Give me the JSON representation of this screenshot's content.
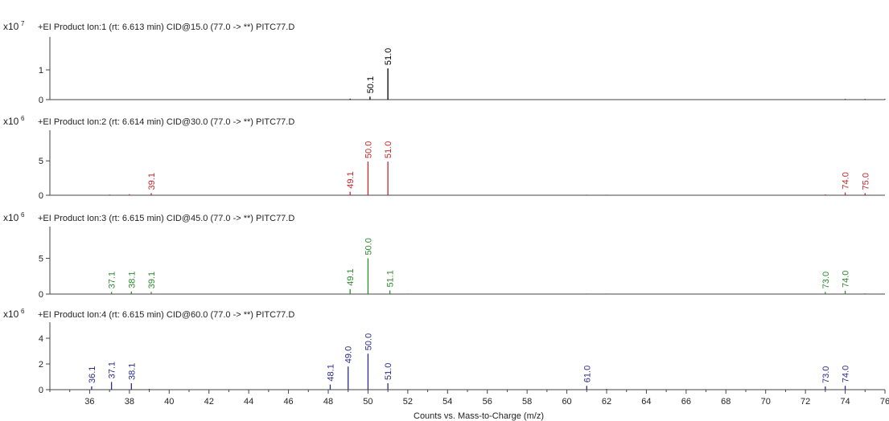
{
  "chart_data": {
    "type": "bar",
    "xlabel": "Counts vs. Mass-to-Charge (m/z)",
    "xlim": [
      34,
      76
    ],
    "x_ticks": [
      36,
      38,
      40,
      42,
      44,
      46,
      48,
      50,
      52,
      54,
      56,
      58,
      60,
      62,
      64,
      66,
      68,
      70,
      72,
      74,
      76
    ],
    "panels": [
      {
        "title": "+EI Product Ion:1 (rt: 6.613 min) CID@15.0 (77.0 -> **) PITC77.D",
        "exponent_base": "x10",
        "exponent": "7",
        "color": "#000000",
        "ylim": [
          0,
          2.0
        ],
        "y_ticks": [
          "0",
          "1"
        ],
        "y_tick_values": [
          0,
          1
        ],
        "peaks": [
          {
            "x": 50.1,
            "y": 0.1,
            "label": "50.1"
          },
          {
            "x": 51.0,
            "y": 1.05,
            "label": "51.0"
          },
          {
            "x": 49.1,
            "y": 0.03,
            "label": ""
          },
          {
            "x": 74.0,
            "y": 0.02,
            "label": ""
          },
          {
            "x": 75.0,
            "y": 0.02,
            "label": ""
          },
          {
            "x": 76.0,
            "y": 0.02,
            "label": ""
          }
        ]
      },
      {
        "title": "+EI Product Ion:2 (rt: 6.614 min) CID@30.0 (77.0 -> **) PITC77.D",
        "exponent_base": "x10",
        "exponent": "6",
        "color": "#c0282b",
        "ylim": [
          0,
          9
        ],
        "y_ticks": [
          "0",
          "5"
        ],
        "y_tick_values": [
          0,
          5
        ],
        "peaks": [
          {
            "x": 37.0,
            "y": 0.1,
            "label": ""
          },
          {
            "x": 38.0,
            "y": 0.15,
            "label": ""
          },
          {
            "x": 39.1,
            "y": 0.3,
            "label": "39.1"
          },
          {
            "x": 49.1,
            "y": 0.5,
            "label": "49.1"
          },
          {
            "x": 50.0,
            "y": 4.9,
            "label": "50.0"
          },
          {
            "x": 51.0,
            "y": 4.9,
            "label": "51.0"
          },
          {
            "x": 61.0,
            "y": 0.08,
            "label": ""
          },
          {
            "x": 62.0,
            "y": 0.08,
            "label": ""
          },
          {
            "x": 73.0,
            "y": 0.12,
            "label": ""
          },
          {
            "x": 74.0,
            "y": 0.4,
            "label": "74.0"
          },
          {
            "x": 75.0,
            "y": 0.3,
            "label": "75.0"
          }
        ]
      },
      {
        "title": "+EI Product Ion:3 (rt: 6.615 min) CID@45.0 (77.0 -> **) PITC77.D",
        "exponent_base": "x10",
        "exponent": "6",
        "color": "#2d8a2d",
        "ylim": [
          0,
          9
        ],
        "y_ticks": [
          "0",
          "5"
        ],
        "y_tick_values": [
          0,
          5
        ],
        "peaks": [
          {
            "x": 37.1,
            "y": 0.3,
            "label": "37.1"
          },
          {
            "x": 38.1,
            "y": 0.35,
            "label": "38.1"
          },
          {
            "x": 39.1,
            "y": 0.3,
            "label": "39.1"
          },
          {
            "x": 49.1,
            "y": 0.7,
            "label": "49.1"
          },
          {
            "x": 50.0,
            "y": 5.0,
            "label": "50.0"
          },
          {
            "x": 51.1,
            "y": 0.5,
            "label": "51.1"
          },
          {
            "x": 52.0,
            "y": 0.08,
            "label": ""
          },
          {
            "x": 61.0,
            "y": 0.08,
            "label": ""
          },
          {
            "x": 62.0,
            "y": 0.08,
            "label": ""
          },
          {
            "x": 73.0,
            "y": 0.3,
            "label": "73.0"
          },
          {
            "x": 74.0,
            "y": 0.45,
            "label": "74.0"
          },
          {
            "x": 75.0,
            "y": 0.1,
            "label": ""
          }
        ]
      },
      {
        "title": "+EI Product Ion:4 (rt: 6.615 min) CID@60.0 (77.0 -> **) PITC77.D",
        "exponent_base": "x10",
        "exponent": "6",
        "color": "#2b2b8c",
        "ylim": [
          0,
          5
        ],
        "y_ticks": [
          "0",
          "2",
          "4"
        ],
        "y_tick_values": [
          0,
          2,
          4
        ],
        "peaks": [
          {
            "x": 36.1,
            "y": 0.25,
            "label": "36.1"
          },
          {
            "x": 37.1,
            "y": 0.6,
            "label": "37.1"
          },
          {
            "x": 38.1,
            "y": 0.5,
            "label": "38.1"
          },
          {
            "x": 39.0,
            "y": 0.06,
            "label": ""
          },
          {
            "x": 48.1,
            "y": 0.4,
            "label": "48.1"
          },
          {
            "x": 49.0,
            "y": 1.8,
            "label": "49.0"
          },
          {
            "x": 50.0,
            "y": 2.8,
            "label": "50.0"
          },
          {
            "x": 51.0,
            "y": 0.5,
            "label": "51.0"
          },
          {
            "x": 61.0,
            "y": 0.3,
            "label": "61.0"
          },
          {
            "x": 62.0,
            "y": 0.06,
            "label": ""
          },
          {
            "x": 73.0,
            "y": 0.25,
            "label": "73.0"
          },
          {
            "x": 74.0,
            "y": 0.3,
            "label": "74.0"
          }
        ]
      }
    ]
  }
}
